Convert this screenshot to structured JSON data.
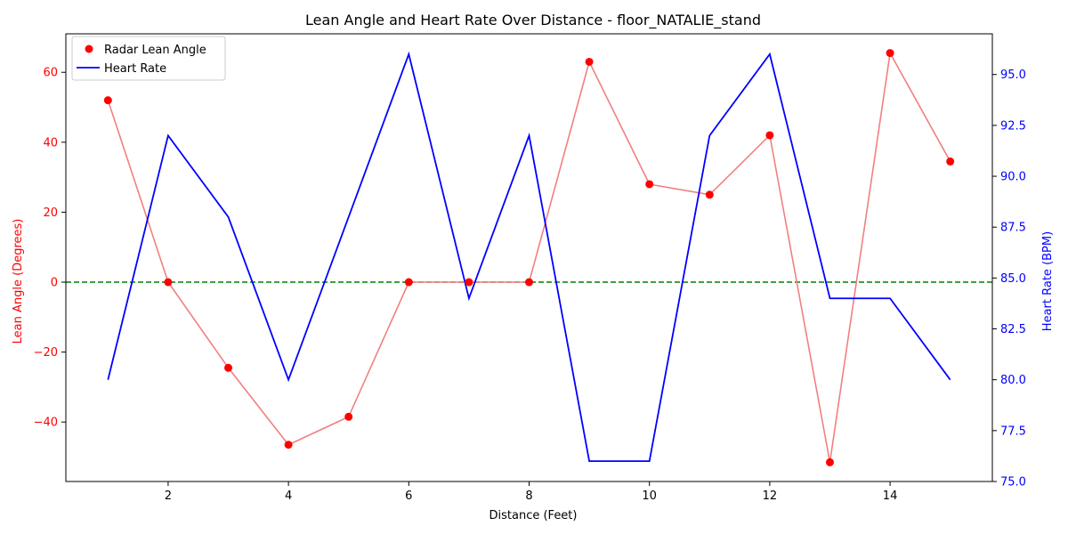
{
  "chart_data": {
    "type": "line",
    "title": "Lean Angle and Heart Rate Over Distance - floor_NATALIE_stand",
    "xlabel": "Distance (Feet)",
    "ylabel_left": "Lean Angle (Degrees)",
    "ylabel_right": "Heart Rate (BPM)",
    "x": [
      1,
      2,
      3,
      4,
      5,
      6,
      7,
      8,
      9,
      10,
      11,
      12,
      13,
      14,
      15
    ],
    "xlim": [
      0.3,
      15.7
    ],
    "xticks": [
      2,
      4,
      6,
      8,
      10,
      12,
      14
    ],
    "ylim_left": [
      -57,
      71
    ],
    "yticks_left": [
      -40,
      -20,
      0,
      20,
      40,
      60
    ],
    "ylim_right": [
      75.0,
      97.0
    ],
    "yticks_right": [
      75.0,
      77.5,
      80.0,
      82.5,
      85.0,
      87.5,
      90.0,
      92.5,
      95.0
    ],
    "reference_line": {
      "y": 0,
      "color": "#008000",
      "style": "dashed"
    },
    "series": [
      {
        "name": "Radar Lean Angle",
        "axis": "left",
        "marker": "circle",
        "marker_color": "#ff0000",
        "line_color": "#f08080",
        "values": [
          52,
          0,
          -24.5,
          -46.5,
          -38.5,
          0,
          0,
          0,
          63,
          28,
          25,
          42,
          -51.5,
          65.5,
          34.5
        ]
      },
      {
        "name": "Heart Rate",
        "axis": "right",
        "line_color": "#0000ff",
        "values": [
          80,
          92,
          88,
          80,
          88,
          96,
          84,
          92,
          76,
          76,
          92,
          96,
          84,
          84,
          80
        ]
      }
    ],
    "legend": {
      "position": "top-left",
      "entries": [
        "Radar Lean Angle",
        "Heart Rate"
      ]
    },
    "left_axis_color": "#ff0000",
    "right_axis_color": "#0000ff",
    "grid": false
  }
}
